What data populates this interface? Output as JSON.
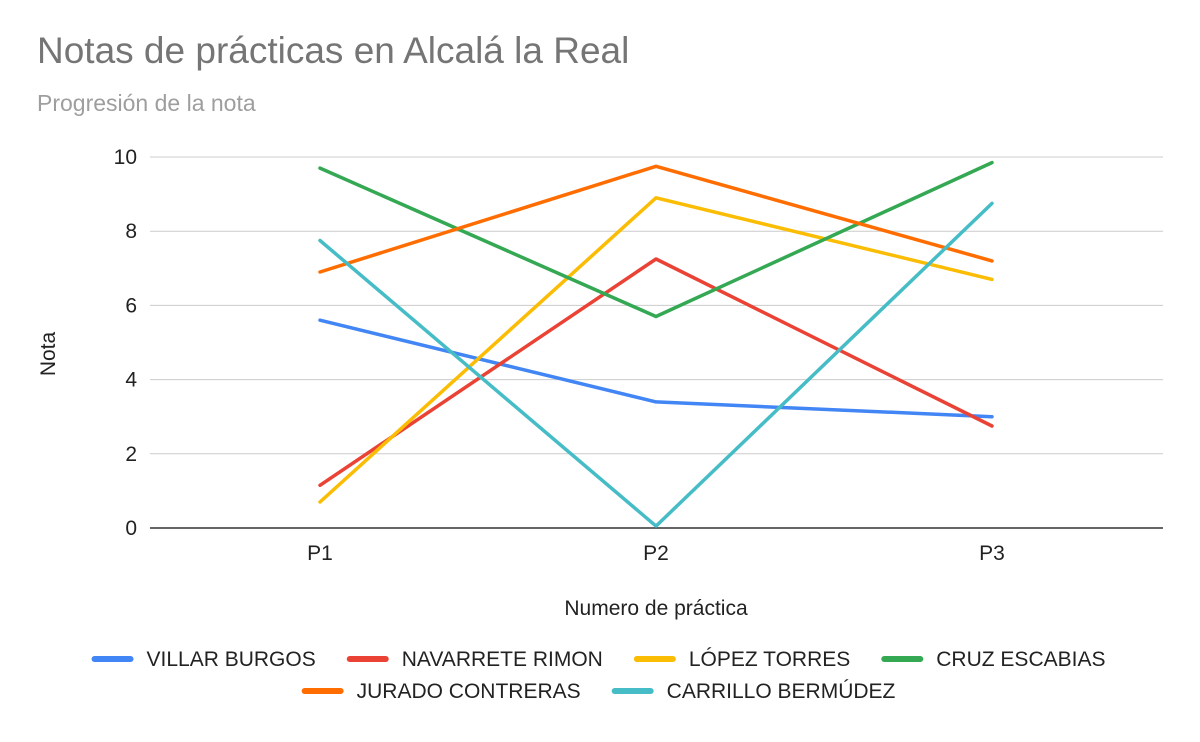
{
  "chart_data": {
    "type": "line",
    "title": "Notas de prácticas en Alcalá la Real",
    "subtitle": "Progresión de la nota",
    "xlabel": "Numero de práctica",
    "ylabel": "Nota",
    "categories": [
      "P1",
      "P2",
      "P3"
    ],
    "ylim": [
      0,
      10
    ],
    "yticks": [
      0,
      2,
      4,
      6,
      8,
      10
    ],
    "grid": true,
    "legend_position": "bottom",
    "series": [
      {
        "name": "VILLAR BURGOS",
        "color": "#4285f4",
        "values": [
          5.6,
          3.4,
          3.0
        ]
      },
      {
        "name": "NAVARRETE RIMON",
        "color": "#ea4335",
        "values": [
          1.15,
          7.25,
          2.75
        ]
      },
      {
        "name": "LÓPEZ TORRES",
        "color": "#fbbc04",
        "values": [
          0.7,
          8.9,
          6.7
        ]
      },
      {
        "name": "CRUZ ESCABIAS",
        "color": "#34a853",
        "values": [
          9.7,
          5.7,
          9.85
        ]
      },
      {
        "name": "JURADO CONTRERAS",
        "color": "#ff6d01",
        "values": [
          6.9,
          9.75,
          7.2
        ]
      },
      {
        "name": "CARRILLO BERMÚDEZ",
        "color": "#46bdc6",
        "values": [
          7.75,
          0.05,
          8.75
        ]
      }
    ]
  }
}
